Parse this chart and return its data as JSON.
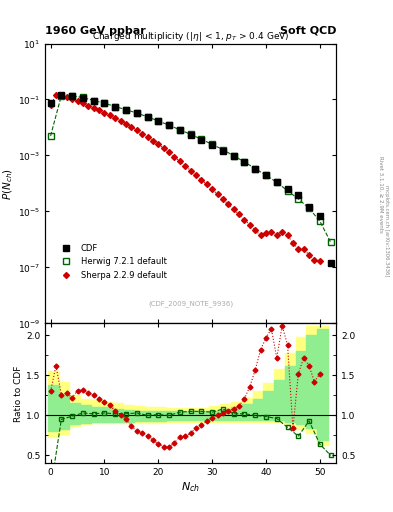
{
  "title_left": "1960 GeV ppbar",
  "title_right": "Soft QCD",
  "subtitle": "Charged multiplicity (|#eta| < 1, p_{T} > 0.4 GeV)",
  "ylabel_main": "P(N_{ch})",
  "ylabel_ratio": "Ratio to CDF",
  "xlabel": "N_{ch}",
  "ref_label": "(CDF_2009_NOTE_9936)",
  "right_text": "mcplots.cern.ch [arXiv:1306.3436]",
  "rivet_text": "Rivet 3.1.10, >= 2.9M events",
  "background_color": "#ffffff",
  "ylim_main_lo": 1e-09,
  "ylim_main_hi": 10,
  "ylim_ratio_lo": 0.4,
  "ylim_ratio_hi": 2.15,
  "xlim_lo": -1,
  "xlim_hi": 53,
  "cdf_nch": [
    0,
    2,
    4,
    6,
    8,
    10,
    12,
    14,
    16,
    18,
    20,
    22,
    24,
    26,
    28,
    30,
    32,
    34,
    36,
    38,
    40,
    42,
    44,
    46,
    48,
    50,
    52
  ],
  "cdf_y": [
    0.075,
    0.145,
    0.135,
    0.115,
    0.09,
    0.072,
    0.055,
    0.042,
    0.032,
    0.024,
    0.017,
    0.012,
    0.008,
    0.0054,
    0.0036,
    0.0024,
    0.0015,
    0.00095,
    0.00058,
    0.00034,
    0.0002,
    0.000115,
    6.5e-05,
    3.8e-05,
    1.4e-05,
    7e-06,
    1.5e-07
  ],
  "cdf_color": "#000000",
  "herwig_nch": [
    0,
    2,
    4,
    6,
    8,
    10,
    12,
    14,
    16,
    18,
    20,
    22,
    24,
    26,
    28,
    30,
    32,
    34,
    36,
    38,
    40,
    42,
    44,
    46,
    48,
    50,
    52
  ],
  "herwig_y": [
    0.005,
    0.138,
    0.133,
    0.118,
    0.092,
    0.074,
    0.056,
    0.043,
    0.033,
    0.024,
    0.0172,
    0.012,
    0.0083,
    0.0057,
    0.0038,
    0.0025,
    0.00162,
    0.00097,
    0.00059,
    0.00034,
    0.000197,
    0.00011,
    5.5e-05,
    2.8e-05,
    1.3e-05,
    4.5e-06,
    8e-07
  ],
  "herwig_color": "#006400",
  "herwig_ratio": [
    0.07,
    0.95,
    0.99,
    1.03,
    1.02,
    1.03,
    1.02,
    1.02,
    1.03,
    1.0,
    1.01,
    1.0,
    1.04,
    1.05,
    1.05,
    1.04,
    1.08,
    1.02,
    1.02,
    1.0,
    0.985,
    0.96,
    0.85,
    0.74,
    0.93,
    0.64,
    0.5
  ],
  "sherpa_nch": [
    0,
    1,
    2,
    3,
    4,
    5,
    6,
    7,
    8,
    9,
    10,
    11,
    12,
    13,
    14,
    15,
    16,
    17,
    18,
    19,
    20,
    21,
    22,
    23,
    24,
    25,
    26,
    27,
    28,
    29,
    30,
    31,
    32,
    33,
    34,
    35,
    36,
    37,
    38,
    39,
    40,
    41,
    42,
    43,
    44,
    45,
    46,
    47,
    48,
    49,
    50
  ],
  "sherpa_y": [
    0.062,
    0.148,
    0.135,
    0.118,
    0.1,
    0.086,
    0.073,
    0.061,
    0.051,
    0.041,
    0.034,
    0.027,
    0.022,
    0.0175,
    0.0138,
    0.0105,
    0.008,
    0.006,
    0.0046,
    0.0034,
    0.0025,
    0.0018,
    0.00128,
    0.00088,
    0.00062,
    0.00043,
    0.00029,
    0.0002,
    0.000137,
    9.2e-05,
    6.2e-05,
    4.1e-05,
    2.7e-05,
    1.8e-05,
    1.18e-05,
    7.8e-06,
    5e-06,
    3.3e-06,
    2.1e-06,
    1.4e-06,
    1.7e-06,
    1.9e-06,
    1.5e-06,
    1.9e-06,
    1.4e-06,
    7.5e-07,
    4.5e-07,
    4.5e-07,
    2.8e-07,
    1.8e-07,
    1.7e-07
  ],
  "sherpa_color": "#cc0000",
  "sherpa_ratio": [
    1.3,
    1.62,
    1.26,
    1.28,
    1.22,
    1.31,
    1.32,
    1.28,
    1.26,
    1.21,
    1.17,
    1.13,
    1.05,
    1.01,
    0.95,
    0.87,
    0.8,
    0.78,
    0.74,
    0.69,
    0.64,
    0.61,
    0.6,
    0.66,
    0.73,
    0.74,
    0.78,
    0.84,
    0.88,
    0.93,
    0.97,
    1.01,
    1.03,
    1.06,
    1.08,
    1.12,
    1.21,
    1.36,
    1.57,
    1.82,
    1.97,
    2.08,
    1.72,
    2.12,
    1.88,
    0.84,
    1.52,
    1.72,
    1.62,
    1.42,
    1.52
  ],
  "yellow_band_x": [
    -0.5,
    1.5,
    3.5,
    5.5,
    7.5,
    9.5,
    11.5,
    13.5,
    15.5,
    17.5,
    19.5,
    21.5,
    23.5,
    25.5,
    27.5,
    29.5,
    31.5,
    33.5,
    35.5,
    37.5,
    39.5,
    41.5,
    43.5,
    45.5,
    47.5,
    49.5,
    51.5
  ],
  "yellow_band_lo": [
    0.73,
    0.77,
    0.87,
    0.89,
    0.9,
    0.9,
    0.9,
    0.9,
    0.91,
    0.91,
    0.91,
    0.92,
    0.92,
    0.92,
    0.92,
    0.92,
    0.92,
    0.92,
    0.92,
    0.92,
    0.92,
    0.92,
    0.88,
    0.83,
    0.78,
    0.63,
    0.42
  ],
  "yellow_band_hi": [
    1.55,
    1.42,
    1.26,
    1.21,
    1.19,
    1.17,
    1.15,
    1.13,
    1.12,
    1.11,
    1.1,
    1.09,
    1.09,
    1.09,
    1.09,
    1.12,
    1.14,
    1.17,
    1.22,
    1.3,
    1.4,
    1.58,
    1.78,
    1.98,
    2.12,
    2.12,
    2.12
  ],
  "green_band_x": [
    -0.5,
    1.5,
    3.5,
    5.5,
    7.5,
    9.5,
    11.5,
    13.5,
    15.5,
    17.5,
    19.5,
    21.5,
    23.5,
    25.5,
    27.5,
    29.5,
    31.5,
    33.5,
    35.5,
    37.5,
    39.5,
    41.5,
    43.5,
    45.5,
    47.5,
    49.5,
    51.5
  ],
  "green_band_lo": [
    0.8,
    0.83,
    0.89,
    0.91,
    0.92,
    0.92,
    0.92,
    0.92,
    0.93,
    0.93,
    0.93,
    0.94,
    0.94,
    0.94,
    0.94,
    0.94,
    0.94,
    0.94,
    0.94,
    0.94,
    0.94,
    0.94,
    0.92,
    0.89,
    0.84,
    0.69,
    0.48
  ],
  "green_band_hi": [
    1.38,
    1.26,
    1.16,
    1.13,
    1.11,
    1.1,
    1.08,
    1.07,
    1.06,
    1.06,
    1.05,
    1.05,
    1.05,
    1.05,
    1.05,
    1.06,
    1.08,
    1.1,
    1.14,
    1.2,
    1.3,
    1.44,
    1.62,
    1.8,
    2.0,
    2.08,
    2.08
  ]
}
